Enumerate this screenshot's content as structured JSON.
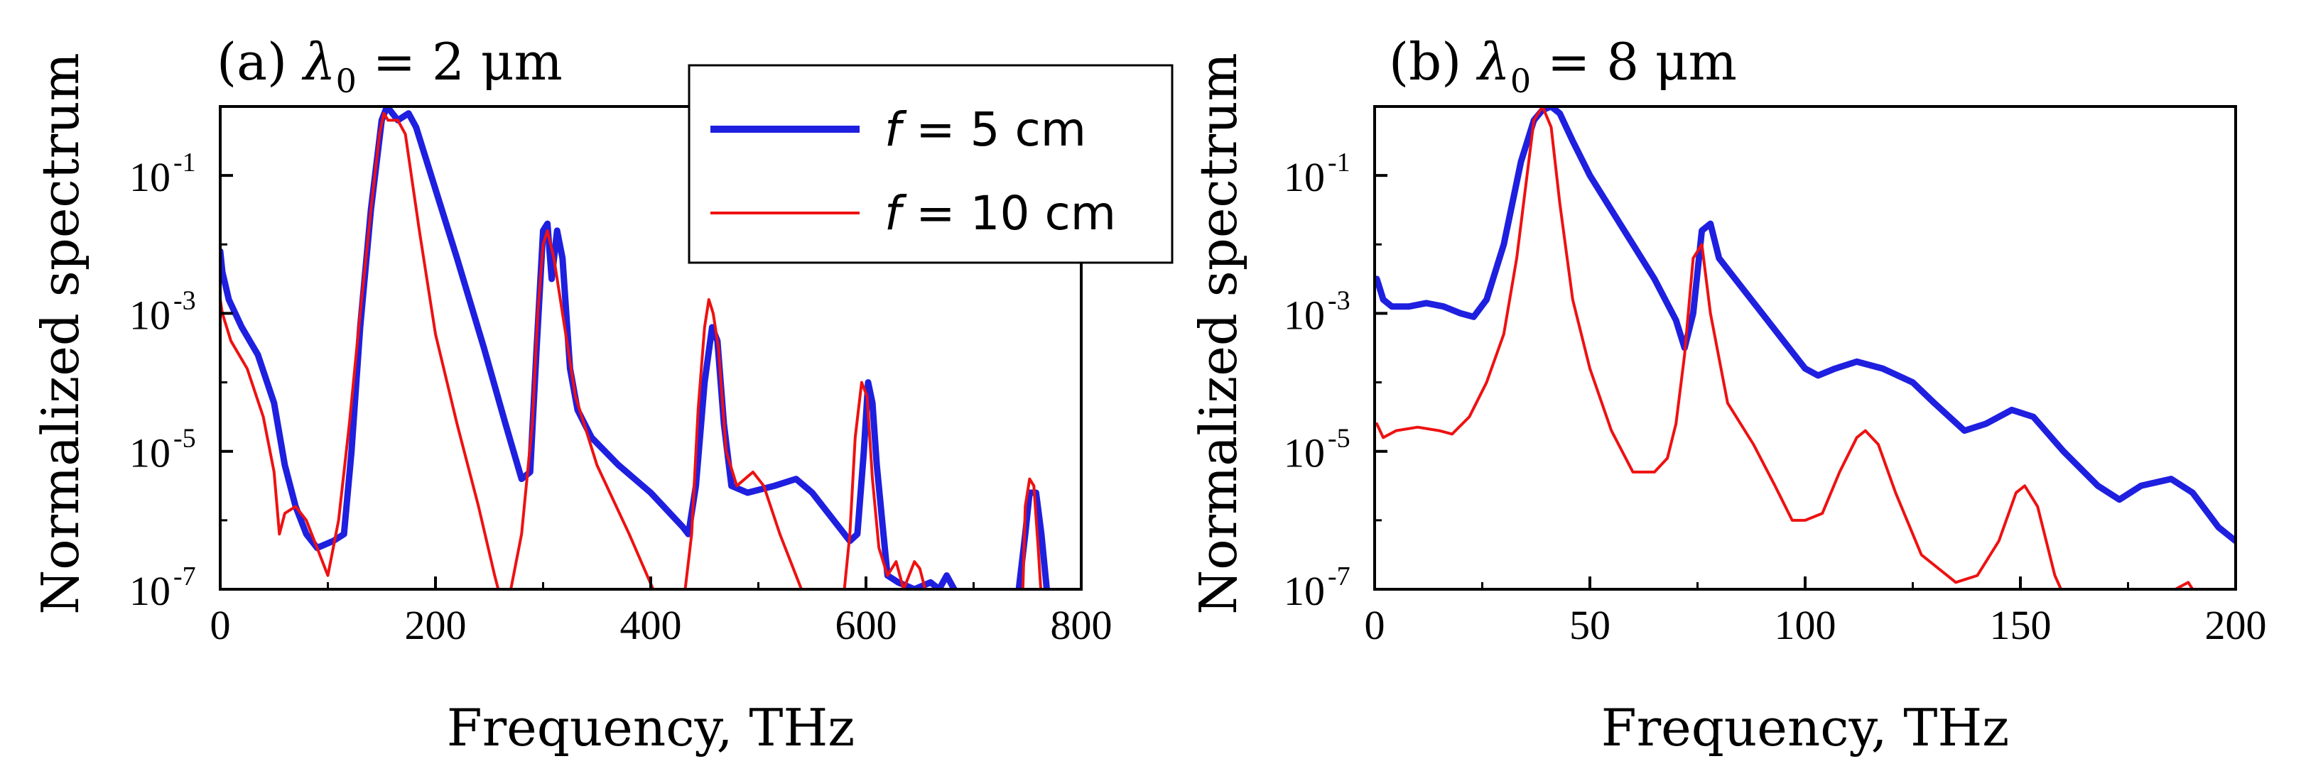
{
  "chart_data": [
    {
      "type": "line",
      "panel_label": "(a)",
      "title_symbol": "λ",
      "title_subscript": "0",
      "title_rest": " = 2 μm",
      "xlabel": "Frequency, THz",
      "ylabel": "Normalized spectrum",
      "xlim": [
        0,
        800
      ],
      "ylim_log10": [
        -7,
        0
      ],
      "yscale": "log",
      "x_ticks": [
        0,
        200,
        400,
        600,
        800
      ],
      "x_tick_labels": [
        "0",
        "200",
        "400",
        "600",
        "800"
      ],
      "y_ticks_log10": [
        -7,
        -5,
        -3,
        -1
      ],
      "y_tick_labels": [
        "10",
        "10",
        "10",
        "10"
      ],
      "y_tick_exponents": [
        "-7",
        "-5",
        "-3",
        "-1"
      ],
      "legend": {
        "placement": "top-right",
        "entries": [
          {
            "prefix": "f",
            "text": " = 5 cm",
            "color": "#1f1fe0"
          },
          {
            "prefix": "f",
            "text": " = 10 cm",
            "color": "#ee1111"
          }
        ]
      },
      "series": [
        {
          "name": "f = 5 cm",
          "color": "#1f1fe0",
          "width": 9,
          "points_log10": [
            [
              0,
              -2.1
            ],
            [
              2,
              -2.4
            ],
            [
              8,
              -2.8
            ],
            [
              20,
              -3.2
            ],
            [
              35,
              -3.6
            ],
            [
              50,
              -4.3
            ],
            [
              60,
              -5.2
            ],
            [
              70,
              -5.8
            ],
            [
              80,
              -6.2
            ],
            [
              90,
              -6.4
            ],
            [
              105,
              -6.3
            ],
            [
              115,
              -6.2
            ],
            [
              122,
              -5.0
            ],
            [
              130,
              -3.2
            ],
            [
              140,
              -1.5
            ],
            [
              150,
              -0.2
            ],
            [
              155,
              0.0
            ],
            [
              165,
              -0.2
            ],
            [
              175,
              -0.1
            ],
            [
              182,
              -0.3
            ],
            [
              200,
              -1.2
            ],
            [
              220,
              -2.2
            ],
            [
              245,
              -3.5
            ],
            [
              265,
              -4.6
            ],
            [
              280,
              -5.4
            ],
            [
              288,
              -5.3
            ],
            [
              294,
              -3.5
            ],
            [
              300,
              -1.8
            ],
            [
              304,
              -1.7
            ],
            [
              308,
              -2.5
            ],
            [
              313,
              -1.8
            ],
            [
              318,
              -2.2
            ],
            [
              325,
              -3.8
            ],
            [
              332,
              -4.4
            ],
            [
              345,
              -4.8
            ],
            [
              370,
              -5.2
            ],
            [
              400,
              -5.6
            ],
            [
              430,
              -6.1
            ],
            [
              435,
              -6.2
            ],
            [
              442,
              -5.5
            ],
            [
              450,
              -4.0
            ],
            [
              457,
              -3.2
            ],
            [
              462,
              -3.4
            ],
            [
              468,
              -4.6
            ],
            [
              475,
              -5.5
            ],
            [
              490,
              -5.6
            ],
            [
              515,
              -5.5
            ],
            [
              535,
              -5.4
            ],
            [
              550,
              -5.6
            ],
            [
              570,
              -6.0
            ],
            [
              585,
              -6.3
            ],
            [
              592,
              -6.2
            ],
            [
              598,
              -5.0
            ],
            [
              602,
              -4.0
            ],
            [
              606,
              -4.3
            ],
            [
              610,
              -5.2
            ],
            [
              615,
              -6.0
            ],
            [
              620,
              -6.8
            ],
            [
              630,
              -6.9
            ],
            [
              645,
              -7.0
            ],
            [
              660,
              -6.9
            ],
            [
              668,
              -7.0
            ],
            [
              675,
              -6.8
            ],
            [
              682,
              -7.0
            ]
          ],
          "points2_log10": [
            [
              742,
              -7.0
            ],
            [
              748,
              -6.2
            ],
            [
              752,
              -5.6
            ],
            [
              758,
              -5.6
            ],
            [
              763,
              -6.2
            ],
            [
              768,
              -7.0
            ]
          ]
        },
        {
          "name": "f = 10 cm",
          "color": "#ee1111",
          "width": 4,
          "points_log10": [
            [
              0,
              -2.8
            ],
            [
              2,
              -3.0
            ],
            [
              10,
              -3.4
            ],
            [
              25,
              -3.8
            ],
            [
              40,
              -4.5
            ],
            [
              50,
              -5.3
            ],
            [
              55,
              -6.2
            ],
            [
              60,
              -5.9
            ],
            [
              70,
              -5.8
            ],
            [
              80,
              -6.0
            ],
            [
              90,
              -6.4
            ],
            [
              100,
              -6.8
            ],
            [
              110,
              -6.0
            ],
            [
              120,
              -4.6
            ],
            [
              130,
              -3.0
            ],
            [
              140,
              -1.5
            ],
            [
              148,
              -0.4
            ],
            [
              152,
              -0.1
            ],
            [
              156,
              -0.2
            ],
            [
              165,
              -0.2
            ],
            [
              172,
              -0.4
            ],
            [
              185,
              -1.8
            ],
            [
              200,
              -3.3
            ],
            [
              220,
              -4.6
            ],
            [
              240,
              -5.8
            ],
            [
              255,
              -6.8
            ],
            [
              265,
              -7.4
            ],
            [
              280,
              -6.2
            ],
            [
              290,
              -4.6
            ],
            [
              295,
              -3.0
            ],
            [
              300,
              -2.0
            ],
            [
              304,
              -1.8
            ],
            [
              310,
              -2.2
            ],
            [
              318,
              -3.0
            ],
            [
              330,
              -4.2
            ],
            [
              350,
              -5.2
            ],
            [
              380,
              -6.2
            ],
            [
              405,
              -7.1
            ],
            [
              430,
              -7.8
            ],
            [
              432,
              -7.0
            ],
            [
              438,
              -6.2
            ],
            [
              444,
              -4.4
            ],
            [
              450,
              -3.2
            ],
            [
              454,
              -2.8
            ],
            [
              458,
              -3.0
            ],
            [
              463,
              -3.5
            ],
            [
              470,
              -5.0
            ],
            [
              480,
              -5.5
            ],
            [
              495,
              -5.3
            ],
            [
              505,
              -5.5
            ],
            [
              520,
              -6.2
            ],
            [
              540,
              -7.0
            ],
            [
              560,
              -7.6
            ],
            [
              578,
              -7.3
            ],
            [
              585,
              -6.2
            ],
            [
              590,
              -4.8
            ],
            [
              596,
              -4.0
            ],
            [
              601,
              -4.2
            ],
            [
              606,
              -5.4
            ],
            [
              612,
              -6.4
            ],
            [
              620,
              -6.8
            ],
            [
              628,
              -6.6
            ],
            [
              635,
              -7.0
            ],
            [
              645,
              -6.6
            ],
            [
              650,
              -6.7
            ],
            [
              655,
              -7.0
            ],
            [
              665,
              -7.4
            ]
          ],
          "points2_log10": [
            [
              745,
              -7.4
            ],
            [
              748,
              -5.8
            ],
            [
              752,
              -5.4
            ],
            [
              756,
              -5.5
            ],
            [
              760,
              -6.4
            ],
            [
              764,
              -7.4
            ]
          ]
        }
      ]
    },
    {
      "type": "line",
      "panel_label": "(b)",
      "title_symbol": "λ",
      "title_subscript": "0",
      "title_rest": " = 8 μm",
      "xlabel": "Frequency, THz",
      "ylabel": "Normalized spectrum",
      "xlim": [
        0,
        200
      ],
      "ylim_log10": [
        -7,
        0
      ],
      "yscale": "log",
      "x_ticks": [
        0,
        50,
        100,
        150,
        200
      ],
      "x_tick_labels": [
        "0",
        "50",
        "100",
        "150",
        "200"
      ],
      "y_ticks_log10": [
        -7,
        -5,
        -3,
        -1
      ],
      "y_tick_labels": [
        "10",
        "10",
        "10",
        "10"
      ],
      "y_tick_exponents": [
        "-7",
        "-5",
        "-3",
        "-1"
      ],
      "series": [
        {
          "name": "f = 5 cm",
          "color": "#1f1fe0",
          "width": 9,
          "points_log10": [
            [
              0.5,
              -2.5
            ],
            [
              1,
              -2.6
            ],
            [
              2,
              -2.8
            ],
            [
              4,
              -2.9
            ],
            [
              8,
              -2.9
            ],
            [
              12,
              -2.85
            ],
            [
              16,
              -2.9
            ],
            [
              20,
              -3.0
            ],
            [
              23,
              -3.05
            ],
            [
              26,
              -2.8
            ],
            [
              30,
              -2.0
            ],
            [
              34,
              -0.8
            ],
            [
              37,
              -0.2
            ],
            [
              39,
              -0.05
            ],
            [
              41,
              0.0
            ],
            [
              43,
              -0.1
            ],
            [
              46,
              -0.5
            ],
            [
              50,
              -1.0
            ],
            [
              55,
              -1.5
            ],
            [
              60,
              -2.0
            ],
            [
              65,
              -2.5
            ],
            [
              70,
              -3.1
            ],
            [
              72,
              -3.5
            ],
            [
              74,
              -3.0
            ],
            [
              76,
              -1.8
            ],
            [
              78,
              -1.7
            ],
            [
              80,
              -2.2
            ],
            [
              85,
              -2.6
            ],
            [
              90,
              -3.0
            ],
            [
              95,
              -3.4
            ],
            [
              100,
              -3.8
            ],
            [
              103,
              -3.9
            ],
            [
              107,
              -3.8
            ],
            [
              112,
              -3.7
            ],
            [
              118,
              -3.8
            ],
            [
              125,
              -4.0
            ],
            [
              130,
              -4.3
            ],
            [
              137,
              -4.7
            ],
            [
              142,
              -4.6
            ],
            [
              148,
              -4.4
            ],
            [
              153,
              -4.5
            ],
            [
              160,
              -5.0
            ],
            [
              168,
              -5.5
            ],
            [
              173,
              -5.7
            ],
            [
              178,
              -5.5
            ],
            [
              185,
              -5.4
            ],
            [
              190,
              -5.6
            ],
            [
              196,
              -6.1
            ],
            [
              200,
              -6.3
            ]
          ],
          "points2_log10": []
        },
        {
          "name": "f = 10 cm",
          "color": "#ee1111",
          "width": 4,
          "points_log10": [
            [
              0.5,
              -4.6
            ],
            [
              2,
              -4.8
            ],
            [
              5,
              -4.7
            ],
            [
              10,
              -4.65
            ],
            [
              15,
              -4.7
            ],
            [
              18,
              -4.75
            ],
            [
              22,
              -4.5
            ],
            [
              26,
              -4.0
            ],
            [
              30,
              -3.3
            ],
            [
              33,
              -2.2
            ],
            [
              35,
              -1.2
            ],
            [
              37,
              -0.2
            ],
            [
              39,
              0.0
            ],
            [
              41,
              -0.3
            ],
            [
              43,
              -1.4
            ],
            [
              46,
              -2.8
            ],
            [
              50,
              -3.8
            ],
            [
              55,
              -4.7
            ],
            [
              60,
              -5.3
            ],
            [
              65,
              -5.3
            ],
            [
              68,
              -5.1
            ],
            [
              70,
              -4.6
            ],
            [
              72,
              -3.6
            ],
            [
              74,
              -2.2
            ],
            [
              76,
              -2.0
            ],
            [
              78,
              -3.0
            ],
            [
              82,
              -4.3
            ],
            [
              88,
              -4.9
            ],
            [
              93,
              -5.5
            ],
            [
              97,
              -6.0
            ],
            [
              100,
              -6.0
            ],
            [
              104,
              -5.9
            ],
            [
              108,
              -5.3
            ],
            [
              112,
              -4.8
            ],
            [
              114,
              -4.7
            ],
            [
              117,
              -4.9
            ],
            [
              121,
              -5.6
            ],
            [
              127,
              -6.5
            ],
            [
              135,
              -6.9
            ],
            [
              140,
              -6.8
            ],
            [
              145,
              -6.3
            ],
            [
              149,
              -5.6
            ],
            [
              151,
              -5.5
            ],
            [
              154,
              -5.8
            ],
            [
              158,
              -6.8
            ],
            [
              163,
              -7.5
            ],
            [
              170,
              -8.0
            ],
            [
              180,
              -7.6
            ],
            [
              186,
              -7.0
            ],
            [
              189,
              -6.9
            ],
            [
              192,
              -7.2
            ],
            [
              196,
              -7.8
            ],
            [
              200,
              -8.0
            ]
          ],
          "points2_log10": []
        }
      ]
    }
  ]
}
